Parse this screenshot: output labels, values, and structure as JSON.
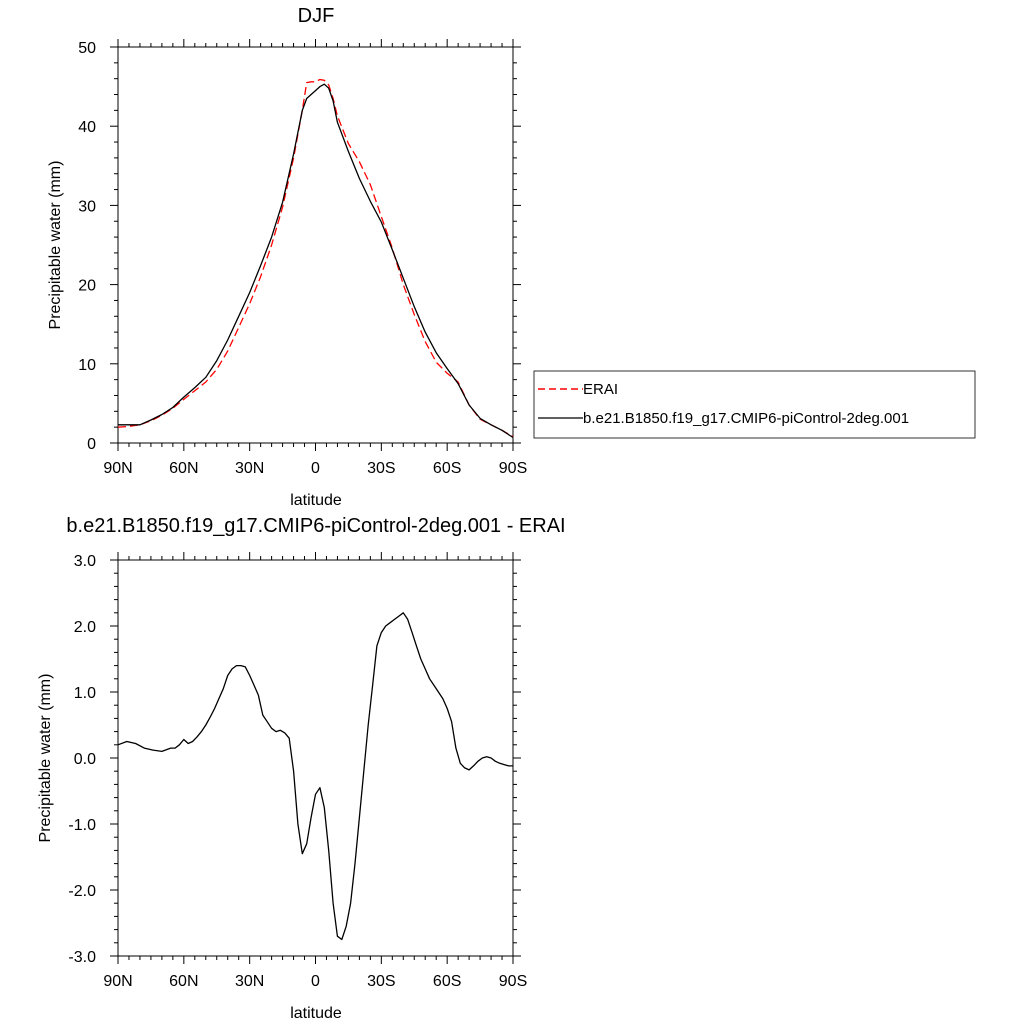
{
  "chart_data": [
    {
      "type": "line",
      "title": "DJF",
      "xlabel": "latitude",
      "ylabel": "Precipitable water (mm)",
      "xlim": [
        90,
        -90
      ],
      "ylim": [
        0,
        50
      ],
      "x_ticks": [
        {
          "value": 90,
          "label": "90N"
        },
        {
          "value": 60,
          "label": "60N"
        },
        {
          "value": 30,
          "label": "30N"
        },
        {
          "value": 0,
          "label": "0"
        },
        {
          "value": -30,
          "label": "30S"
        },
        {
          "value": -60,
          "label": "60S"
        },
        {
          "value": -90,
          "label": "90S"
        }
      ],
      "y_ticks": [
        {
          "value": 0,
          "label": "0"
        },
        {
          "value": 10,
          "label": "10"
        },
        {
          "value": 20,
          "label": "20"
        },
        {
          "value": 30,
          "label": "30"
        },
        {
          "value": 40,
          "label": "40"
        },
        {
          "value": 50,
          "label": "50"
        }
      ],
      "legend_position": "right",
      "series": [
        {
          "name": "ERAI",
          "color": "#ff0000",
          "dash": true,
          "x": [
            90,
            85,
            80,
            75,
            70,
            65,
            60,
            55,
            50,
            45,
            40,
            35,
            30,
            25,
            20,
            15,
            10,
            6,
            4,
            2,
            0,
            -2,
            -4,
            -6,
            -8,
            -10,
            -15,
            -20,
            -25,
            -30,
            -35,
            -40,
            -45,
            -50,
            -55,
            -60,
            -65,
            -70,
            -75,
            -80,
            -85,
            -90
          ],
          "values": [
            2.0,
            2.1,
            2.3,
            2.8,
            3.5,
            4.4,
            5.5,
            6.6,
            7.7,
            9.3,
            11.6,
            14.6,
            17.6,
            21.0,
            25.0,
            29.8,
            36.0,
            42.0,
            45.5,
            45.6,
            45.6,
            45.9,
            45.8,
            45.2,
            43.5,
            41.3,
            37.8,
            35.5,
            32.6,
            28.6,
            24.6,
            20.0,
            16.2,
            12.8,
            10.2,
            8.8,
            7.7,
            4.8,
            3.0,
            2.3,
            1.6,
            0.8
          ]
        },
        {
          "name": "b.e21.B1850.f19_g17.CMIP6-piControl-2deg.001",
          "color": "#000000",
          "dash": false,
          "x": [
            90,
            85,
            80,
            75,
            70,
            65,
            60,
            55,
            50,
            45,
            40,
            35,
            30,
            25,
            20,
            15,
            10,
            6,
            4,
            2,
            0,
            -2,
            -4,
            -6,
            -8,
            -10,
            -15,
            -20,
            -25,
            -30,
            -35,
            -40,
            -45,
            -50,
            -55,
            -60,
            -65,
            -70,
            -75,
            -80,
            -85,
            -90
          ],
          "values": [
            2.3,
            2.3,
            2.3,
            2.9,
            3.6,
            4.5,
            5.8,
            7.0,
            8.3,
            10.4,
            13.0,
            16.0,
            19.0,
            22.4,
            26.0,
            30.4,
            36.5,
            42.0,
            43.5,
            44.0,
            44.5,
            45.0,
            45.3,
            44.8,
            43.2,
            40.5,
            36.8,
            33.4,
            30.5,
            27.9,
            24.4,
            20.8,
            17.2,
            14.0,
            11.4,
            9.4,
            7.5,
            4.8,
            3.1,
            2.3,
            1.6,
            0.7
          ]
        }
      ]
    },
    {
      "type": "line",
      "title": "b.e21.B1850.f19_g17.CMIP6-piControl-2deg.001 - ERAI",
      "xlabel": "latitude",
      "ylabel": "Precipitable water (mm)",
      "xlim": [
        90,
        -90
      ],
      "ylim": [
        -3.0,
        3.0
      ],
      "x_ticks": [
        {
          "value": 90,
          "label": "90N"
        },
        {
          "value": 60,
          "label": "60N"
        },
        {
          "value": 30,
          "label": "30N"
        },
        {
          "value": 0,
          "label": "0"
        },
        {
          "value": -30,
          "label": "30S"
        },
        {
          "value": -60,
          "label": "60S"
        },
        {
          "value": -90,
          "label": "90S"
        }
      ],
      "y_ticks": [
        {
          "value": -3.0,
          "label": "-3.0"
        },
        {
          "value": -2.0,
          "label": "-2.0"
        },
        {
          "value": -1.0,
          "label": "-1.0"
        },
        {
          "value": 0.0,
          "label": "0.0"
        },
        {
          "value": 1.0,
          "label": "1.0"
        },
        {
          "value": 2.0,
          "label": "2.0"
        },
        {
          "value": 3.0,
          "label": "3.0"
        }
      ],
      "series": [
        {
          "color": "#000000",
          "dash": false,
          "x": [
            90,
            86,
            82,
            78,
            74,
            70,
            66,
            64,
            62,
            60,
            58,
            56,
            54,
            52,
            50,
            48,
            46,
            44,
            42,
            40,
            38,
            36,
            34,
            32,
            30,
            28,
            26,
            24,
            22,
            20,
            18,
            16,
            14,
            12,
            10,
            8,
            6,
            4,
            2,
            0,
            -2,
            -4,
            -6,
            -8,
            -10,
            -12,
            -14,
            -16,
            -18,
            -20,
            -22,
            -24,
            -26,
            -28,
            -30,
            -32,
            -34,
            -36,
            -38,
            -40,
            -42,
            -44,
            -46,
            -48,
            -50,
            -52,
            -54,
            -56,
            -58,
            -60,
            -62,
            -64,
            -66,
            -68,
            -70,
            -72,
            -74,
            -76,
            -78,
            -80,
            -82,
            -84,
            -86,
            -88,
            -90
          ],
          "values": [
            0.2,
            0.25,
            0.22,
            0.15,
            0.12,
            0.1,
            0.15,
            0.15,
            0.2,
            0.28,
            0.22,
            0.25,
            0.32,
            0.4,
            0.5,
            0.62,
            0.75,
            0.9,
            1.05,
            1.25,
            1.35,
            1.4,
            1.4,
            1.38,
            1.25,
            1.1,
            0.95,
            0.65,
            0.55,
            0.45,
            0.4,
            0.42,
            0.38,
            0.3,
            -0.2,
            -1.0,
            -1.45,
            -1.3,
            -0.9,
            -0.55,
            -0.45,
            -0.75,
            -1.4,
            -2.2,
            -2.7,
            -2.75,
            -2.55,
            -2.2,
            -1.6,
            -0.9,
            -0.2,
            0.5,
            1.1,
            1.7,
            1.9,
            2.0,
            2.05,
            2.1,
            2.15,
            2.2,
            2.1,
            1.9,
            1.7,
            1.5,
            1.35,
            1.2,
            1.1,
            1.0,
            0.9,
            0.75,
            0.55,
            0.15,
            -0.08,
            -0.15,
            -0.18,
            -0.12,
            -0.05,
            0.0,
            0.02,
            0.0,
            -0.05,
            -0.08,
            -0.1,
            -0.12,
            -0.12
          ]
        }
      ]
    }
  ]
}
